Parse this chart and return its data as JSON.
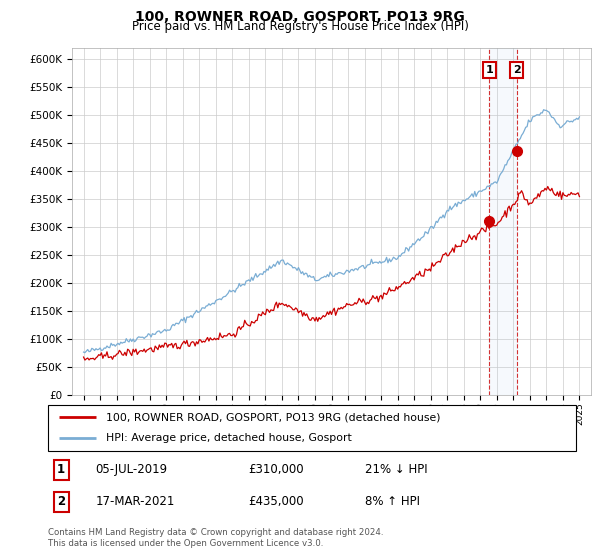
{
  "title": "100, ROWNER ROAD, GOSPORT, PO13 9RG",
  "subtitle": "Price paid vs. HM Land Registry's House Price Index (HPI)",
  "ylabel_ticks": [
    "£0",
    "£50K",
    "£100K",
    "£150K",
    "£200K",
    "£250K",
    "£300K",
    "£350K",
    "£400K",
    "£450K",
    "£500K",
    "£550K",
    "£600K"
  ],
  "ylim": [
    0,
    620000
  ],
  "ytick_values": [
    0,
    50000,
    100000,
    150000,
    200000,
    250000,
    300000,
    350000,
    400000,
    450000,
    500000,
    550000,
    600000
  ],
  "hpi_color": "#7aadd4",
  "price_color": "#cc0000",
  "legend_label1": "100, ROWNER ROAD, GOSPORT, PO13 9RG (detached house)",
  "legend_label2": "HPI: Average price, detached house, Gosport",
  "table_row1": [
    "1",
    "05-JUL-2019",
    "£310,000",
    "21% ↓ HPI"
  ],
  "table_row2": [
    "2",
    "17-MAR-2021",
    "£435,000",
    "8% ↑ HPI"
  ],
  "footer": "Contains HM Land Registry data © Crown copyright and database right 2024.\nThis data is licensed under the Open Government Licence v3.0.",
  "background_color": "#ffffff",
  "grid_color": "#cccccc",
  "marker1_year": 2019.54,
  "marker2_year": 2021.21,
  "marker1_price": 310000,
  "marker2_price": 435000
}
